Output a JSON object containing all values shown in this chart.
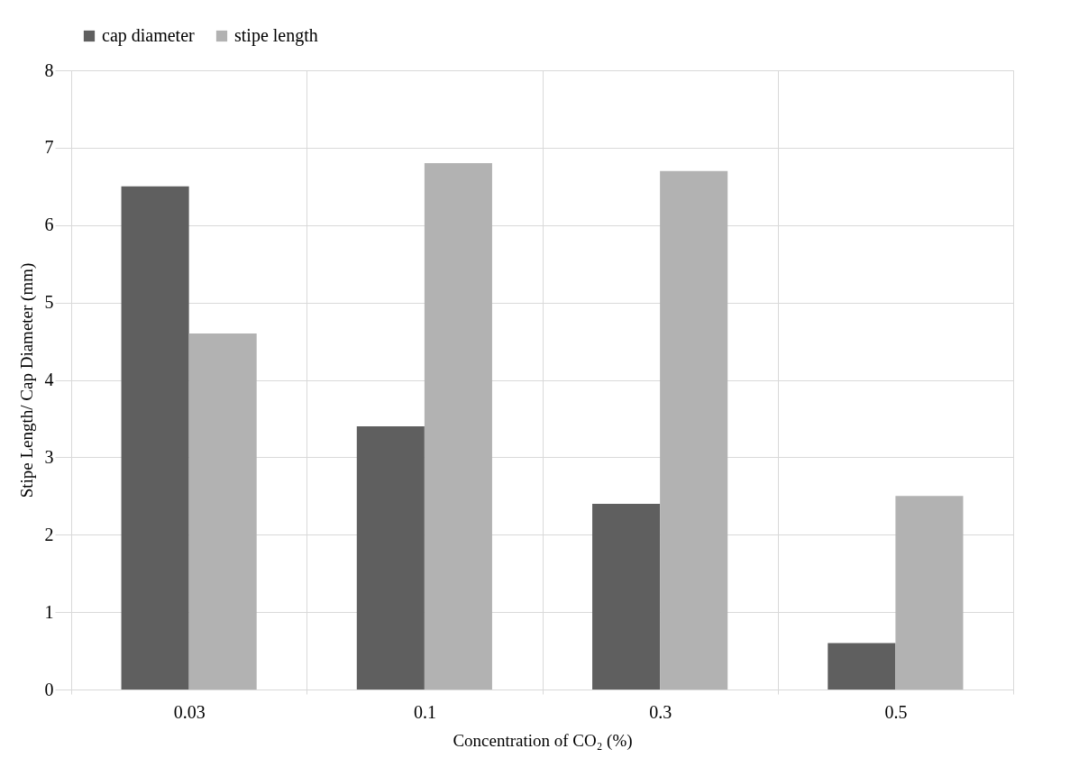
{
  "chart_data": {
    "type": "bar",
    "xlabel": "Concentration of CO₂ (%)",
    "ylabel": "Stipe Length/ Cap Diameter (mm)",
    "categories": [
      "0.03",
      "0.1",
      "0.3",
      "0.5"
    ],
    "series": [
      {
        "name": "cap diameter",
        "color": "#5f5f5f",
        "values": [
          6.5,
          3.4,
          2.4,
          0.6
        ]
      },
      {
        "name": "stipe length",
        "color": "#b2b2b2",
        "values": [
          4.6,
          6.8,
          6.7,
          2.5
        ]
      }
    ],
    "ylim": [
      0,
      8
    ],
    "yticks": [
      0,
      1,
      2,
      3,
      4,
      5,
      6,
      7,
      8
    ],
    "grid": true,
    "legend": "top"
  }
}
